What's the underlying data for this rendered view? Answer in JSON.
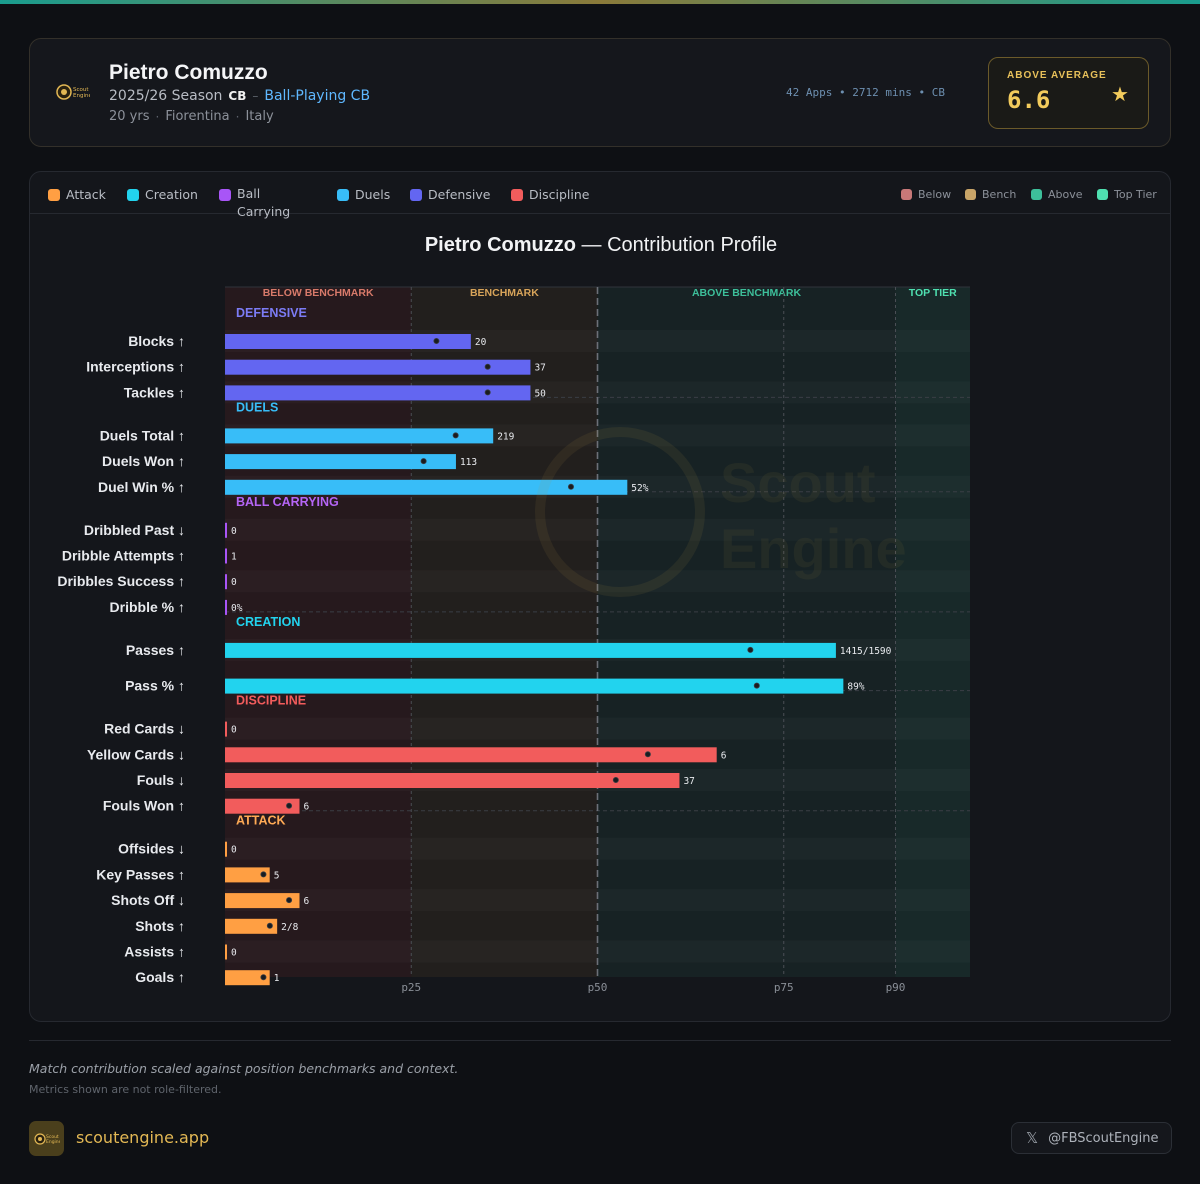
{
  "header": {
    "player_name": "Pietro Comuzzo",
    "season": "2025/26 Season",
    "position": "CB",
    "role": "Ball-Playing CB",
    "age": "20 yrs",
    "club": "Fiorentina",
    "country": "Italy",
    "stats_line": "42 Apps • 2712 mins • CB",
    "rating_label": "ABOVE AVERAGE",
    "rating_value": "6.6",
    "rating_icon": "star-icon"
  },
  "legend": {
    "categories": [
      {
        "label": "Attack",
        "color": "#ff9f43"
      },
      {
        "label": "Creation",
        "color": "#22d3ee"
      },
      {
        "label": "Ball Carrying",
        "color": "#a855f7"
      },
      {
        "label": "Duels",
        "color": "#38bdf8"
      },
      {
        "label": "Defensive",
        "color": "#6366f1"
      },
      {
        "label": "Discipline",
        "color": "#f25c5c"
      }
    ],
    "tiers": [
      {
        "label": "Below",
        "color": "#c87878"
      },
      {
        "label": "Bench",
        "color": "#c8a468"
      },
      {
        "label": "Above",
        "color": "#3dbf9a"
      },
      {
        "label": "Top Tier",
        "color": "#4fe0b0"
      }
    ]
  },
  "chart_data": {
    "type": "bar",
    "title_name": "Pietro Comuzzo",
    "title_dash": "—",
    "title_rest": "Contribution Profile",
    "x_scale": "percentile",
    "xlim": [
      0,
      100
    ],
    "x_ticks": [
      {
        "label": "p25",
        "value": 25
      },
      {
        "label": "p50",
        "value": 50
      },
      {
        "label": "p75",
        "value": 75
      },
      {
        "label": "p90",
        "value": 90
      }
    ],
    "zones": [
      {
        "label": "BELOW BENCHMARK",
        "from": 0,
        "to": 25,
        "color": "#d87a6a"
      },
      {
        "label": "BENCHMARK",
        "from": 25,
        "to": 50,
        "color": "#d8a45a"
      },
      {
        "label": "ABOVE BENCHMARK",
        "from": 50,
        "to": 90,
        "color": "#3dbf9a"
      },
      {
        "label": "TOP TIER",
        "from": 90,
        "to": 100,
        "color": "#4fe0b0"
      }
    ],
    "groups": [
      {
        "name": "DEFENSIVE",
        "color": "#6366f1",
        "label_color": "#7c7cf5",
        "metrics": [
          {
            "label": "Blocks ↑",
            "percentile": 33,
            "value": "20"
          },
          {
            "label": "Interceptions ↑",
            "percentile": 41,
            "value": "37"
          },
          {
            "label": "Tackles ↑",
            "percentile": 41,
            "value": "50"
          }
        ]
      },
      {
        "name": "DUELS",
        "color": "#38bdf8",
        "label_color": "#38bdf8",
        "metrics": [
          {
            "label": "Duels Total ↑",
            "percentile": 36,
            "value": "219"
          },
          {
            "label": "Duels Won ↑",
            "percentile": 31,
            "value": "113"
          },
          {
            "label": "Duel Win % ↑",
            "percentile": 54,
            "value": "52%"
          }
        ]
      },
      {
        "name": "BALL CARRYING",
        "color": "#a855f7",
        "label_color": "#b565f5",
        "metrics": [
          {
            "label": "Dribbled Past ↓",
            "percentile": 0,
            "value": "0"
          },
          {
            "label": "Dribble Attempts ↑",
            "percentile": 0,
            "value": "1"
          },
          {
            "label": "Dribbles Success ↑",
            "percentile": 0,
            "value": "0"
          },
          {
            "label": "Dribble % ↑",
            "percentile": 0,
            "value": "0%"
          }
        ]
      },
      {
        "name": "CREATION",
        "color": "#22d3ee",
        "label_color": "#22d3ee",
        "metrics": [
          {
            "label": "Passes ↑",
            "percentile": 82,
            "value": "1415/1590"
          },
          {
            "label": "Pass % ↑",
            "percentile": 83,
            "value": "89%"
          }
        ]
      },
      {
        "name": "DISCIPLINE",
        "color": "#f25c5c",
        "label_color": "#f25c5c",
        "metrics": [
          {
            "label": "Red Cards ↓",
            "percentile": 0,
            "value": "0"
          },
          {
            "label": "Yellow Cards ↓",
            "percentile": 66,
            "value": "6"
          },
          {
            "label": "Fouls ↓",
            "percentile": 61,
            "value": "37"
          },
          {
            "label": "Fouls Won ↑",
            "percentile": 10,
            "value": "6"
          }
        ]
      },
      {
        "name": "ATTACK",
        "color": "#ff9f43",
        "label_color": "#ffaa55",
        "metrics": [
          {
            "label": "Offsides ↓",
            "percentile": 0,
            "value": "0"
          },
          {
            "label": "Key Passes ↑",
            "percentile": 6,
            "value": "5"
          },
          {
            "label": "Shots Off ↓",
            "percentile": 10,
            "value": "6"
          },
          {
            "label": "Shots ↑",
            "percentile": 7,
            "value": "2/8"
          },
          {
            "label": "Assists ↑",
            "percentile": 0,
            "value": "0"
          },
          {
            "label": "Goals ↑",
            "percentile": 6,
            "value": "1"
          }
        ]
      }
    ]
  },
  "footer": {
    "note1": "Match contribution scaled against position benchmarks and context.",
    "note2": "Metrics shown are not role-filtered.",
    "brand": "scoutengine.app",
    "social_icon": "x-logo-icon",
    "social_handle": "@FBScoutEngine"
  }
}
